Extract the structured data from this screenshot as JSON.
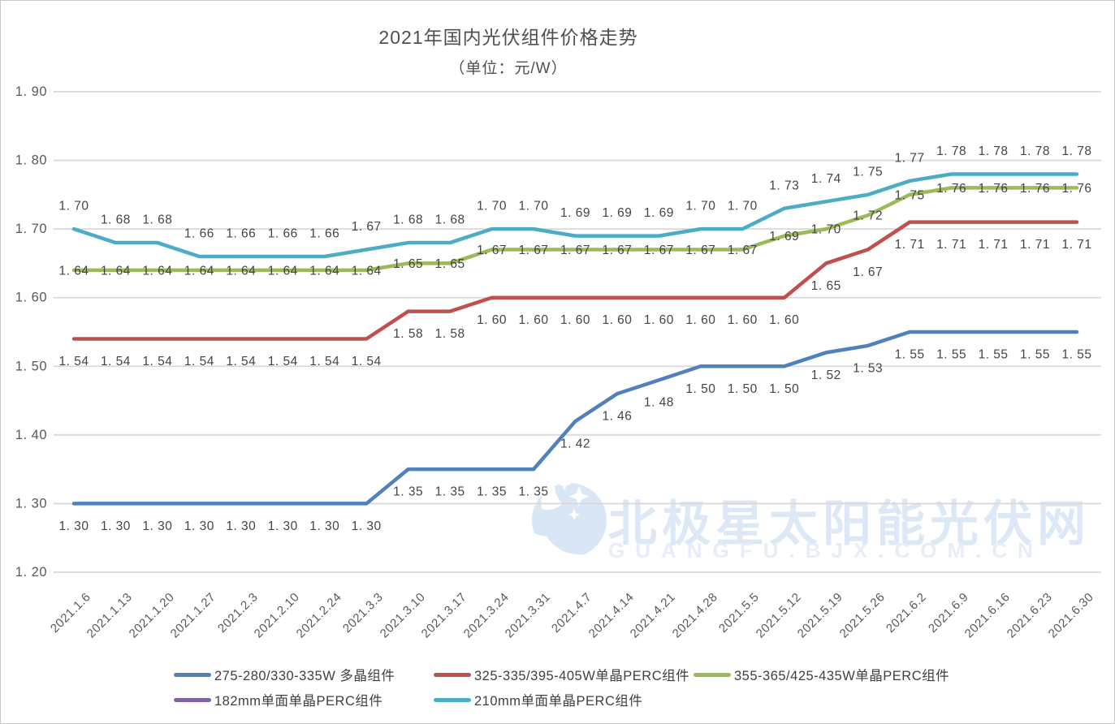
{
  "page": {
    "title": "2021年国内光伏组件价格走势",
    "subtitle": "（单位：元/W）"
  },
  "watermark": {
    "text_cn": "北极星太阳能光伏网",
    "text_en": "GUANGFU.BJX.COM.CN",
    "color": "#dce8f6"
  },
  "colors": {
    "gridline": "#d9d9d9",
    "axis_text": "#595959",
    "data_label_text": "#444444"
  },
  "chart_data": {
    "type": "line",
    "title": "2021年国内光伏组件价格走势",
    "subtitle": "（单位：元/W）",
    "grid": true,
    "legend_position": "bottom",
    "ylim": [
      1.2,
      1.9
    ],
    "yticks": [
      1.9,
      1.8,
      1.7,
      1.6,
      1.5,
      1.4,
      1.3,
      1.2
    ],
    "x": [
      "2021.1.6",
      "2021.1.13",
      "2021.1.20",
      "2021.1.27",
      "2021.2.3",
      "2021.2.10",
      "2021.2.24",
      "2021.3.3",
      "2021.3.10",
      "2021.3.17",
      "2021.3.24",
      "2021.3.31",
      "2021.4.7",
      "2021.4.14",
      "2021.4.21",
      "2021.4.28",
      "2021.5.5",
      "2021.5.12",
      "2021.5.19",
      "2021.5.26",
      "2021.6.2",
      "2021.6.9",
      "2021.6.16",
      "2021.6.23",
      "2021.6.30"
    ],
    "series": [
      {
        "name": "275-280/330-335W 多晶组件",
        "color": "#4F81BD",
        "values": [
          1.3,
          1.3,
          1.3,
          1.3,
          1.3,
          1.3,
          1.3,
          1.3,
          1.35,
          1.35,
          1.35,
          1.35,
          1.42,
          1.46,
          1.48,
          1.5,
          1.5,
          1.5,
          1.52,
          1.53,
          1.55,
          1.55,
          1.55,
          1.55,
          1.55
        ]
      },
      {
        "name": "325-335/395-405W单晶PERC组件",
        "color": "#C0504D",
        "values": [
          1.54,
          1.54,
          1.54,
          1.54,
          1.54,
          1.54,
          1.54,
          1.54,
          1.58,
          1.58,
          1.6,
          1.6,
          1.6,
          1.6,
          1.6,
          1.6,
          1.6,
          1.6,
          1.65,
          1.67,
          1.71,
          1.71,
          1.71,
          1.71,
          1.71
        ]
      },
      {
        "name": "355-365/425-435W单晶PERC组件",
        "color": "#9BBB59",
        "values": [
          1.64,
          1.64,
          1.64,
          1.64,
          1.64,
          1.64,
          1.64,
          1.64,
          1.65,
          1.65,
          1.67,
          1.67,
          1.67,
          1.67,
          1.67,
          1.67,
          1.67,
          1.69,
          1.7,
          1.72,
          1.75,
          1.76,
          1.76,
          1.76,
          1.76
        ]
      },
      {
        "name": "182mm单面单晶PERC组件",
        "color": "#8064A2",
        "values": []
      },
      {
        "name": "210mm单面单晶PERC组件",
        "color": "#4BACC6",
        "values": [
          1.7,
          1.68,
          1.68,
          1.66,
          1.66,
          1.66,
          1.66,
          1.67,
          1.68,
          1.68,
          1.7,
          1.7,
          1.69,
          1.69,
          1.69,
          1.7,
          1.7,
          1.73,
          1.74,
          1.75,
          1.77,
          1.78,
          1.78,
          1.78,
          1.78
        ]
      }
    ]
  }
}
